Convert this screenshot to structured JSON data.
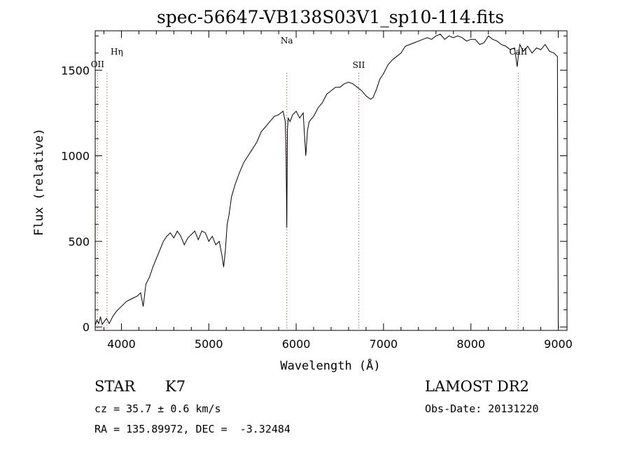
{
  "chart_data": {
    "type": "line",
    "title": "spec-56647-VB138S03V1_sp10-114.fits",
    "xlabel": "Wavelength (Å)",
    "ylabel": "Flux (relative)",
    "xlim": [
      3700,
      9100
    ],
    "ylim": [
      -20,
      1730
    ],
    "xticks": [
      4000,
      5000,
      6000,
      7000,
      8000,
      9000
    ],
    "yticks": [
      0,
      500,
      1000,
      1500
    ],
    "line_color": "#000000",
    "marker_color": "#cc3333",
    "lines": [
      {
        "label": "OII",
        "wavelength": 3727
      },
      {
        "label": "Hη",
        "wavelength": 3835
      },
      {
        "label": "Na",
        "wavelength": 5893
      },
      {
        "label": "SII",
        "wavelength": 6717
      },
      {
        "label": "CaII",
        "wavelength": 8542
      }
    ],
    "series": [
      {
        "x": [
          3700,
          3720,
          3740,
          3760,
          3780,
          3800,
          3830,
          3860,
          3900,
          3940,
          3980,
          4020,
          4060,
          4100,
          4140,
          4180,
          4220,
          4250,
          4280,
          4320,
          4360,
          4400,
          4440,
          4480,
          4520,
          4560,
          4600,
          4640,
          4680,
          4720,
          4760,
          4800,
          4840,
          4880,
          4920,
          4960,
          5000,
          5040,
          5080,
          5120,
          5150,
          5170,
          5190,
          5210,
          5230,
          5260,
          5300,
          5350,
          5400,
          5450,
          5500,
          5550,
          5600,
          5650,
          5700,
          5750,
          5800,
          5850,
          5875,
          5885,
          5893,
          5900,
          5910,
          5930,
          5960,
          6000,
          6040,
          6080,
          6110,
          6130,
          6150,
          6200,
          6250,
          6300,
          6350,
          6400,
          6450,
          6500,
          6550,
          6600,
          6650,
          6700,
          6750,
          6800,
          6850,
          6880,
          6920,
          6960,
          7000,
          7050,
          7100,
          7150,
          7200,
          7250,
          7300,
          7350,
          7400,
          7450,
          7500,
          7550,
          7600,
          7650,
          7700,
          7750,
          7800,
          7850,
          7900,
          7950,
          8000,
          8050,
          8100,
          8150,
          8200,
          8250,
          8300,
          8350,
          8400,
          8450,
          8500,
          8530,
          8542,
          8560,
          8600,
          8650,
          8700,
          8750,
          8800,
          8850,
          8900,
          8950,
          8990,
          9000,
          9010
        ],
        "y": [
          10,
          40,
          20,
          60,
          15,
          30,
          50,
          20,
          60,
          90,
          110,
          130,
          150,
          160,
          170,
          180,
          200,
          120,
          250,
          290,
          350,
          400,
          450,
          500,
          530,
          550,
          520,
          560,
          530,
          480,
          520,
          540,
          560,
          510,
          560,
          550,
          500,
          530,
          480,
          500,
          420,
          350,
          450,
          600,
          650,
          760,
          830,
          900,
          960,
          1000,
          1040,
          1080,
          1140,
          1170,
          1200,
          1230,
          1240,
          1260,
          1200,
          1000,
          580,
          1150,
          1220,
          1200,
          1240,
          1260,
          1220,
          1250,
          1000,
          1150,
          1200,
          1230,
          1280,
          1310,
          1360,
          1380,
          1400,
          1400,
          1420,
          1430,
          1420,
          1400,
          1380,
          1350,
          1330,
          1340,
          1390,
          1450,
          1480,
          1530,
          1560,
          1580,
          1600,
          1640,
          1650,
          1660,
          1670,
          1680,
          1690,
          1680,
          1700,
          1710,
          1680,
          1700,
          1690,
          1700,
          1690,
          1670,
          1680,
          1680,
          1650,
          1660,
          1700,
          1680,
          1670,
          1650,
          1640,
          1620,
          1630,
          1520,
          1580,
          1650,
          1610,
          1640,
          1600,
          1630,
          1620,
          1650,
          1610,
          1600,
          1580,
          0,
          0
        ]
      }
    ]
  },
  "info": {
    "object_class": "STAR",
    "subclass": "K7",
    "survey": "LAMOST DR2",
    "cz": "cz = 35.7 ± 0.6 km/s",
    "obs_date": "Obs-Date: 20131220",
    "coords": "RA = 135.89972, DEC =  -3.32484"
  }
}
